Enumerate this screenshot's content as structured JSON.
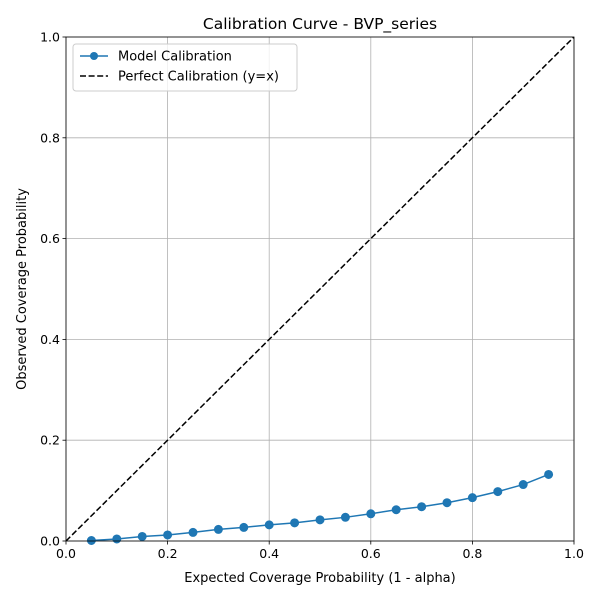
{
  "chart_data": {
    "type": "line",
    "title": "Calibration Curve - BVP_series",
    "xlabel": "Expected Coverage Probability (1 - alpha)",
    "ylabel": "Observed Coverage Probability",
    "xlim": [
      0.0,
      1.0
    ],
    "ylim": [
      0.0,
      1.0
    ],
    "xticks": [
      "0.0",
      "0.2",
      "0.4",
      "0.6",
      "0.8",
      "1.0"
    ],
    "yticks": [
      "0.0",
      "0.2",
      "0.4",
      "0.6",
      "0.8",
      "1.0"
    ],
    "grid": true,
    "legend_position": "top-left",
    "series": [
      {
        "name": "Model Calibration",
        "style": "solid line with circle markers",
        "color": "#1f77b4",
        "x": [
          0.05,
          0.1,
          0.15,
          0.2,
          0.25,
          0.3,
          0.35,
          0.4,
          0.45,
          0.5,
          0.55,
          0.6,
          0.65,
          0.7,
          0.75,
          0.8,
          0.85,
          0.9,
          0.95
        ],
        "y": [
          0.001,
          0.004,
          0.009,
          0.012,
          0.017,
          0.023,
          0.027,
          0.032,
          0.036,
          0.042,
          0.047,
          0.054,
          0.062,
          0.068,
          0.076,
          0.086,
          0.098,
          0.112,
          0.132
        ]
      },
      {
        "name": "Perfect Calibration (y=x)",
        "style": "dashed line",
        "color": "#000000",
        "x": [
          0.0,
          1.0
        ],
        "y": [
          0.0,
          1.0
        ]
      }
    ]
  }
}
